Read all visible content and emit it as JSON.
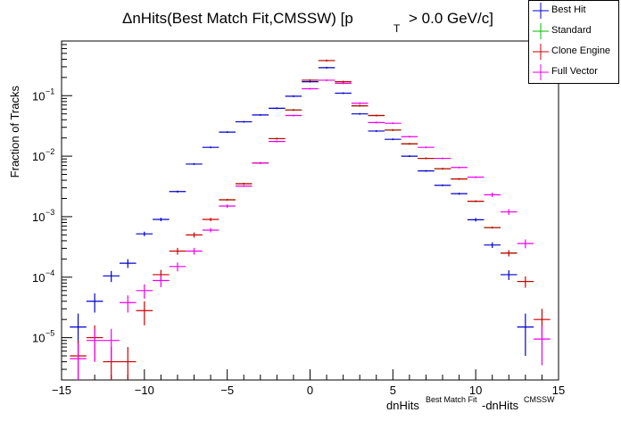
{
  "chart_data": {
    "type": "scatter",
    "title_parts": [
      "ΔnHits(Best Match Fit,CMSSW) [p",
      "T",
      " > 0.0 GeV/c]"
    ],
    "xlabel_parts": [
      "dnHits",
      "Best Match Fit",
      "-dnHits",
      "CMSSW"
    ],
    "ylabel": "Fraction of Tracks",
    "xlim": [
      -15,
      15
    ],
    "ylim": [
      2e-06,
      0.8
    ],
    "yscale": "log",
    "x_tick_labels": [
      "−15",
      "−10",
      "−5",
      "0",
      "5",
      "10",
      "15"
    ],
    "y_tick_labels": [
      "10",
      "10",
      "10",
      "10",
      "10"
    ],
    "y_tick_exponents": [
      "−5",
      "−4",
      "−3",
      "−2",
      "−1"
    ],
    "legend_position": "top-right",
    "series": [
      {
        "name": "Best Hit",
        "color": "#0000cc",
        "x": [
          -14,
          -13,
          -12,
          -11,
          -10,
          -9,
          -8,
          -7,
          -6,
          -5,
          -4,
          -3,
          -2,
          -1,
          0,
          1,
          2,
          3,
          4,
          5,
          6,
          7,
          8,
          9,
          10,
          11,
          12,
          13
        ],
        "y": [
          1.5e-05,
          4e-05,
          0.000105,
          0.00017,
          0.00052,
          0.0009,
          0.0026,
          0.0074,
          0.014,
          0.025,
          0.037,
          0.048,
          0.062,
          0.098,
          0.17,
          0.29,
          0.11,
          0.05,
          0.026,
          0.019,
          0.01,
          0.0057,
          0.0033,
          0.0024,
          0.00089,
          0.00034,
          0.00011,
          1.5e-05
        ],
        "err": [
          1e-05,
          1.4e-05,
          2.2e-05,
          2.8e-05,
          4.5e-05,
          6e-05,
          0.0001,
          0,
          0,
          0,
          0,
          0,
          0,
          0,
          0,
          0,
          0,
          0,
          0,
          0,
          0,
          0,
          0,
          0.0001,
          6e-05,
          3.6e-05,
          2e-05,
          1e-05
        ]
      },
      {
        "name": "Standard",
        "color": "#00bb00",
        "x": [
          -5,
          -4,
          -3,
          -2,
          -1,
          0,
          1,
          2,
          3,
          4,
          5,
          6,
          7,
          8,
          9,
          10,
          11,
          12,
          13
        ],
        "y": [
          0.0019,
          0.0035,
          0.0077,
          0.0195,
          0.058,
          0.18,
          0.38,
          0.17,
          0.068,
          0.047,
          0.027,
          0.016,
          0.0092,
          0.0062,
          0.0042,
          0.0018,
          0.00066,
          0.00025,
          8.5e-05
        ],
        "err": [
          0,
          0,
          0,
          0,
          0,
          0,
          0,
          0,
          0,
          0,
          0,
          0,
          0,
          0,
          0,
          0,
          0,
          0,
          0
        ]
      },
      {
        "name": "Clone Engine",
        "color": "#cc0000",
        "x": [
          -14,
          -13,
          -12,
          -11,
          -10,
          -9,
          -8,
          -7,
          -6,
          -5,
          -4,
          -3,
          -2,
          -1,
          0,
          1,
          2,
          3,
          4,
          5,
          6,
          7,
          8,
          9,
          10,
          11,
          12,
          13,
          14
        ],
        "y": [
          5e-06,
          1e-05,
          4e-06,
          4e-06,
          2.8e-05,
          0.00011,
          0.00027,
          0.0005,
          0.0009,
          0.0019,
          0.0035,
          0.0077,
          0.0195,
          0.058,
          0.18,
          0.38,
          0.17,
          0.068,
          0.047,
          0.027,
          0.016,
          0.0092,
          0.0062,
          0.0042,
          0.0018,
          0.00066,
          0.00025,
          8.5e-05,
          2e-05
        ],
        "err": [
          4e-06,
          6e-06,
          3e-06,
          3e-06,
          1.2e-05,
          2.2e-05,
          3.5e-05,
          5e-05,
          6e-05,
          0,
          0,
          0,
          0,
          0,
          0,
          0,
          0,
          0,
          0,
          0,
          0,
          0,
          0,
          0,
          0,
          0,
          3e-05,
          1.8e-05,
          1e-05
        ]
      },
      {
        "name": "Full Vector",
        "color": "#ee00ee",
        "x": [
          -14,
          -13,
          -12,
          -11,
          -10,
          -9,
          -8,
          -7,
          -6,
          -5,
          -4,
          -3,
          -2,
          -1,
          0,
          1,
          2,
          3,
          4,
          5,
          6,
          7,
          8,
          9,
          10,
          11,
          12,
          13,
          14
        ],
        "y": [
          4.5e-06,
          9e-06,
          9e-06,
          3.8e-05,
          6e-05,
          8.8e-05,
          0.00015,
          0.00027,
          0.0006,
          0.0015,
          0.0032,
          0.0077,
          0.0175,
          0.047,
          0.13,
          0.18,
          0.16,
          0.075,
          0.036,
          0.035,
          0.021,
          0.014,
          0.0092,
          0.0065,
          0.0045,
          0.0023,
          0.0012,
          0.00036,
          9.5e-06
        ],
        "err": [
          3.5e-06,
          5e-06,
          5e-06,
          1.2e-05,
          1.6e-05,
          2e-05,
          2.5e-05,
          3.5e-05,
          5e-05,
          0.0001,
          0,
          0,
          0,
          0,
          0,
          0,
          0,
          0,
          0,
          0,
          0,
          0,
          0,
          0,
          0,
          0.0002,
          0.00013,
          6e-05,
          6e-06
        ]
      }
    ]
  }
}
